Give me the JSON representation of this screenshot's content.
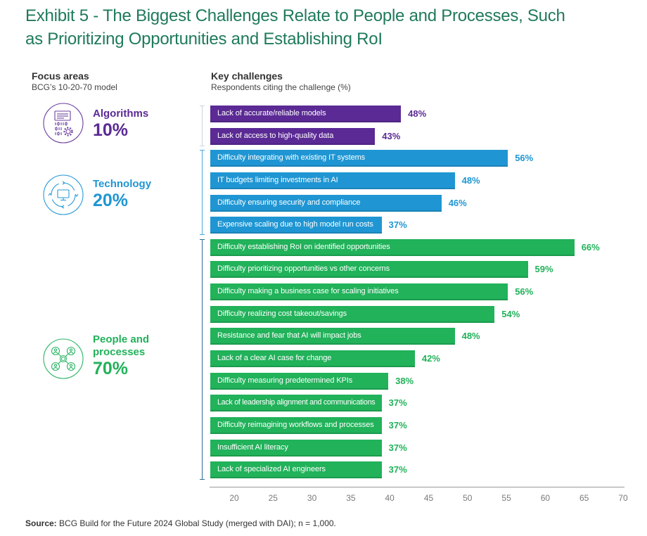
{
  "title_lines": [
    "Exhibit 5 - The Biggest Challenges Relate to People and Processes, Such",
    "as Prioritizing Opportunities and Establishing RoI"
  ],
  "focus_areas": {
    "heading": "Focus areas",
    "subheading": "BCG’s 10-20-70 model"
  },
  "key_challenges": {
    "heading": "Key challenges",
    "subheading": "Respondents citing the challenge (%)"
  },
  "groups": [
    {
      "name": "Algorithms",
      "share": "10%",
      "color": "#5b2a95",
      "bracket_color": "#c9d5df",
      "icon": "algorithm-icon"
    },
    {
      "name": "Technology",
      "share": "20%",
      "color": "#1f96d3",
      "bracket_color": "#4ba8dc",
      "icon": "technology-cycle-icon"
    },
    {
      "name": "People and processes",
      "share": "70%",
      "color": "#21b25a",
      "bracket_color": "#2b6f96",
      "icon": "people-network-icon"
    }
  ],
  "chart_data": {
    "type": "bar",
    "orientation": "horizontal",
    "title": "Key challenges",
    "subtitle": "Respondents citing the challenge (%)",
    "xlabel": "",
    "ylabel": "",
    "value_suffix": "%",
    "x_ticks": [
      20,
      25,
      30,
      35,
      40,
      45,
      50,
      55,
      60,
      65,
      70
    ],
    "xlim": [
      17,
      70
    ],
    "grid": false,
    "legend": "none",
    "series": [
      {
        "name": "Algorithms",
        "categories": [
          "Lack of accurate/reliable models",
          "Lack of access to high-quality data"
        ],
        "values": [
          48,
          43
        ]
      },
      {
        "name": "Technology",
        "categories": [
          "Difficulty integrating with existing IT systems",
          "IT budgets limiting investments in AI",
          "Difficulty ensuring security and compliance",
          "Expensive scaling due to high model run costs"
        ],
        "values": [
          56,
          48,
          46,
          37
        ]
      },
      {
        "name": "People and processes",
        "categories": [
          "Difficulty establishing RoI on identified opportunities",
          "Difficulty prioritizing opportunities vs other concerns",
          "Difficulty making a business case for scaling initiatives",
          "Difficulty realizing cost takeout/savings",
          "Resistance and fear that AI will impact jobs",
          "Lack of a clear AI case for change",
          "Difficulty measuring predetermined KPIs",
          "Lack of leadership alignment and communications",
          "Difficulty reimagining workflows and processes",
          "Insufficient AI literacy",
          "Lack of specialized AI engineers"
        ],
        "values": [
          66,
          59,
          56,
          54,
          48,
          42,
          38,
          37,
          37,
          37,
          37
        ]
      }
    ]
  },
  "source": {
    "label": "Source:",
    "text": " BCG Build for the Future 2024 Global Study (merged with DAI); n = 1,000."
  }
}
